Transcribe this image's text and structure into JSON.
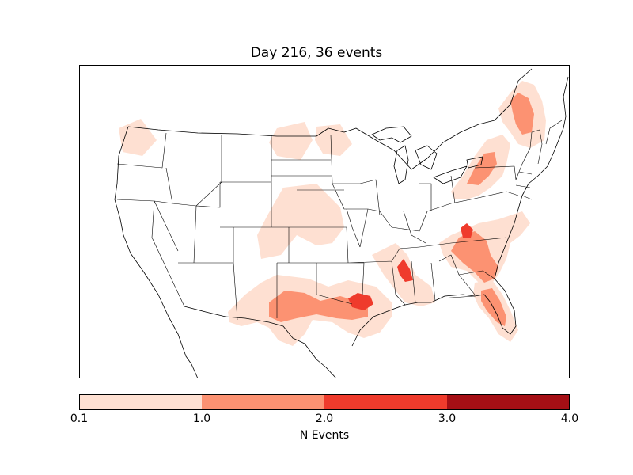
{
  "title": "Day 216, 36 events",
  "colors": {
    "level1": "#fee0d2",
    "level2": "#fc9272",
    "level3": "#ef3b2c",
    "level4": "#a50f15",
    "outline": "#000000"
  },
  "colorbar": {
    "label": "N Events",
    "ticks": [
      "0.1",
      "1.0",
      "2.0",
      "3.0",
      "4.0"
    ],
    "bins": [
      {
        "from": 0.1,
        "to": 1.0,
        "color_key": "level1"
      },
      {
        "from": 1.0,
        "to": 2.0,
        "color_key": "level2"
      },
      {
        "from": 2.0,
        "to": 3.0,
        "color_key": "level3"
      },
      {
        "from": 3.0,
        "to": 4.0,
        "color_key": "level4"
      }
    ]
  },
  "chart_data": {
    "type": "heatmap",
    "title": "Day 216, 36 events",
    "colorbar_label": "N Events",
    "colorbar_range": [
      0.1,
      4.0
    ],
    "regions": [
      {
        "name": "pacific-northwest",
        "level": 1
      },
      {
        "name": "north-dakota",
        "level": 1
      },
      {
        "name": "minnesota",
        "level": 1
      },
      {
        "name": "nebraska-kansas-colorado",
        "level": 1
      },
      {
        "name": "texas-oklahoma",
        "level": 2
      },
      {
        "name": "north-texas",
        "level": 3
      },
      {
        "name": "mississippi-delta",
        "level": 3
      },
      {
        "name": "carolinas",
        "level": 2
      },
      {
        "name": "virginia",
        "level": 3
      },
      {
        "name": "florida-georgia",
        "level": 2
      },
      {
        "name": "new-york-pennsylvania",
        "level": 2
      },
      {
        "name": "new-england",
        "level": 2
      }
    ]
  }
}
